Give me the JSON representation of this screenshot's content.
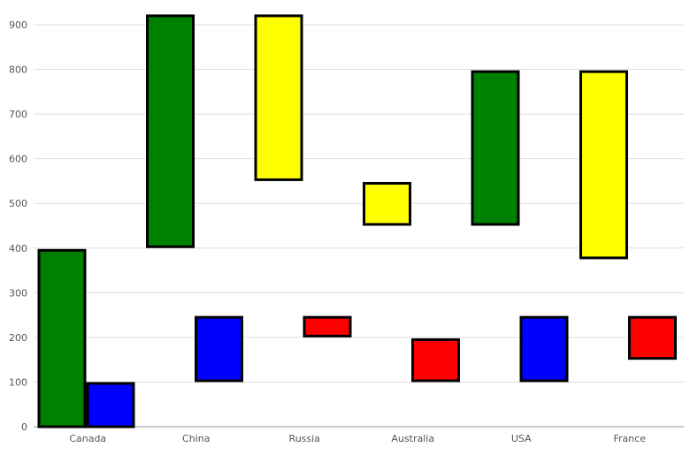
{
  "chart_data": {
    "type": "bar",
    "subtype": "floating-range",
    "title": "",
    "xlabel": "",
    "ylabel": "",
    "ylim": [
      0,
      900
    ],
    "y_ticks": [
      0,
      100,
      200,
      300,
      400,
      500,
      600,
      700,
      800,
      900
    ],
    "grid": true,
    "categories": [
      "Canada",
      "China",
      "Russia",
      "Australia",
      "USA",
      "France"
    ],
    "series": [
      {
        "color": "#008000",
        "ranges": [
          [
            0,
            395
          ],
          [
            403,
            920
          ],
          null,
          null,
          [
            453,
            795
          ],
          null
        ]
      },
      {
        "color": "#ffff00",
        "ranges": [
          null,
          null,
          [
            553,
            920
          ],
          [
            453,
            545
          ],
          null,
          [
            378,
            795
          ]
        ]
      },
      {
        "color": "#0000ff",
        "ranges": [
          [
            0,
            97
          ],
          [
            103,
            245
          ],
          null,
          null,
          [
            103,
            245
          ],
          null
        ]
      },
      {
        "color": "#ff0000",
        "ranges": [
          null,
          null,
          [
            203,
            245
          ],
          [
            103,
            195
          ],
          null,
          [
            153,
            245
          ]
        ]
      }
    ]
  }
}
